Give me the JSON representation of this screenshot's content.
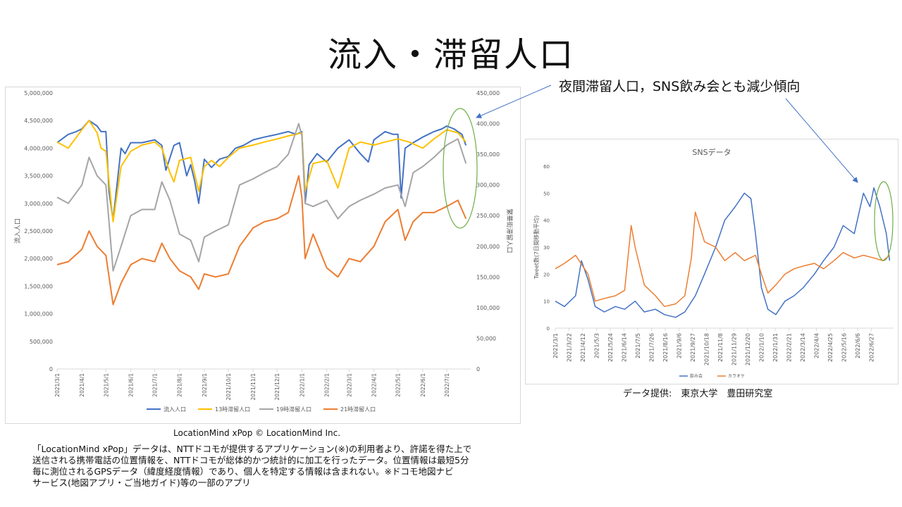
{
  "slide": {
    "title": "流入・滞留人口",
    "annotation": "夜間滞留人口，SNS飲み会とも減少傾向",
    "credit_main": "LocationMind xPop © LocationMind Inc.",
    "credit_sns": "データ提供:　東京大学　豊田研究室",
    "note_lines": [
      "「LocationMind xPop」データは、NTTドコモが提供するアプリケーション(※)の利用者より、許諾を得た上で",
      "送信される携帯電話の位置情報を、NTTドコモが総体的かつ統計的に加工を行ったデータ。位置情報は最短5分",
      "毎に測位されるGPSデータ（緯度経度情報）であり、個人を特定する情報は含まれない。※ドコモ地図ナビ",
      "サービス(地図アプリ・ご当地ガイド)等の一部のアプリ"
    ]
  },
  "colors": {
    "blue": "#4472c4",
    "yellow": "#ffc000",
    "gray": "#a5a5a5",
    "orange": "#ed7d31",
    "ellipse": "#70ad47",
    "arrow": "#4472c4"
  },
  "chart_data": [
    {
      "type": "line",
      "title": "",
      "ylabel": "流入人口",
      "y2label": "繁華街滞留人口",
      "ylim": [
        0,
        5000000
      ],
      "y2lim": [
        0,
        450000
      ],
      "yticks": [
        "0",
        "500,000",
        "1,000,000",
        "1,500,000",
        "2,000,000",
        "2,500,000",
        "3,000,000",
        "3,500,000",
        "4,000,000",
        "4,500,000",
        "5,000,000"
      ],
      "y2ticks": [
        "0",
        "50,000",
        "100,000",
        "150,000",
        "200,000",
        "250,000",
        "300,000",
        "350,000",
        "400,000",
        "450,000"
      ],
      "xticks": [
        "2021/3/1",
        "2021/4/1",
        "2021/5/1",
        "2021/6/1",
        "2021/7/1",
        "2021/8/1",
        "2021/9/1",
        "2021/10/1",
        "2021/11/1",
        "2021/12/1",
        "2022/1/1",
        "2022/2/1",
        "2022/3/1",
        "2022/4/1",
        "2022/5/1",
        "2022/6/1",
        "2022/7/1"
      ],
      "xstart": "2021/3/1",
      "xend": "2022/7/31",
      "grid": false,
      "legend_position": "bottom",
      "series": [
        {
          "name": "流入人口",
          "axis": "left",
          "x": [
            "2021/3/1",
            "2021/3/15",
            "2021/3/25",
            "2021/4/1",
            "2021/4/10",
            "2021/4/20",
            "2021/4/25",
            "2021/5/1",
            "2021/5/5",
            "2021/5/10",
            "2021/5/20",
            "2021/5/25",
            "2021/6/1",
            "2021/6/15",
            "2021/7/1",
            "2021/7/10",
            "2021/7/15",
            "2021/7/25",
            "2021/8/1",
            "2021/8/10",
            "2021/8/15",
            "2021/8/20",
            "2021/8/25",
            "2021/9/1",
            "2021/9/10",
            "2021/9/20",
            "2021/10/1",
            "2021/10/10",
            "2021/10/20",
            "2021/11/1",
            "2021/11/15",
            "2021/12/1",
            "2021/12/15",
            "2021/12/25",
            "2022/1/1",
            "2022/1/5",
            "2022/1/10",
            "2022/1/20",
            "2022/2/1",
            "2022/2/15",
            "2022/3/1",
            "2022/3/15",
            "2022/3/25",
            "2022/4/1",
            "2022/4/15",
            "2022/4/25",
            "2022/5/1",
            "2022/5/5",
            "2022/5/10",
            "2022/5/20",
            "2022/6/1",
            "2022/6/15",
            "2022/6/25",
            "2022/7/1",
            "2022/7/10",
            "2022/7/20",
            "2022/7/25"
          ],
          "values": [
            4100000,
            4250000,
            4300000,
            4350000,
            4500000,
            4400000,
            4300000,
            4300000,
            3200000,
            2700000,
            4000000,
            3900000,
            4100000,
            4100000,
            4150000,
            4050000,
            3600000,
            4050000,
            4100000,
            3500000,
            3700000,
            3400000,
            3000000,
            3800000,
            3650000,
            3800000,
            3850000,
            4000000,
            4050000,
            4150000,
            4200000,
            4250000,
            4300000,
            4250000,
            4300000,
            3000000,
            3700000,
            3900000,
            3750000,
            4000000,
            4150000,
            3900000,
            3750000,
            4150000,
            4300000,
            4250000,
            4250000,
            3100000,
            4000000,
            4100000,
            4200000,
            4300000,
            4350000,
            4400000,
            4350000,
            4250000,
            4050000
          ]
        },
        {
          "name": "13時滞留人口",
          "axis": "right",
          "x": [
            "2021/3/1",
            "2021/3/15",
            "2021/4/1",
            "2021/4/10",
            "2021/4/20",
            "2021/4/25",
            "2021/5/1",
            "2021/5/10",
            "2021/5/20",
            "2021/6/1",
            "2021/6/15",
            "2021/7/1",
            "2021/7/10",
            "2021/7/20",
            "2021/7/25",
            "2021/8/1",
            "2021/8/15",
            "2021/8/25",
            "2021/9/1",
            "2021/9/10",
            "2021/9/20",
            "2021/10/1",
            "2021/10/15",
            "2021/11/1",
            "2021/11/15",
            "2021/12/1",
            "2021/12/15",
            "2022/1/1",
            "2022/1/5",
            "2022/1/15",
            "2022/2/1",
            "2022/2/15",
            "2022/3/1",
            "2022/3/15",
            "2022/4/1",
            "2022/4/15",
            "2022/5/1",
            "2022/5/15",
            "2022/6/1",
            "2022/6/15",
            "2022/7/1",
            "2022/7/15",
            "2022/7/25"
          ],
          "values": [
            370000,
            360000,
            390000,
            405000,
            385000,
            360000,
            355000,
            240000,
            330000,
            355000,
            365000,
            370000,
            360000,
            320000,
            305000,
            340000,
            345000,
            290000,
            330000,
            340000,
            330000,
            345000,
            360000,
            365000,
            370000,
            375000,
            380000,
            385000,
            290000,
            335000,
            340000,
            295000,
            360000,
            370000,
            365000,
            370000,
            375000,
            370000,
            360000,
            375000,
            390000,
            385000,
            370000
          ]
        },
        {
          "name": "19時滞留人口",
          "axis": "right",
          "x": [
            "2021/3/1",
            "2021/3/15",
            "2021/4/1",
            "2021/4/10",
            "2021/4/20",
            "2021/5/1",
            "2021/5/10",
            "2021/5/20",
            "2021/6/1",
            "2021/6/15",
            "2021/7/1",
            "2021/7/10",
            "2021/7/20",
            "2021/8/1",
            "2021/8/15",
            "2021/8/25",
            "2021/9/1",
            "2021/9/15",
            "2021/10/1",
            "2021/10/15",
            "2021/11/1",
            "2021/11/15",
            "2021/12/1",
            "2021/12/15",
            "2021/12/28",
            "2022/1/1",
            "2022/1/5",
            "2022/1/15",
            "2022/2/1",
            "2022/2/15",
            "2022/3/1",
            "2022/3/15",
            "2022/4/1",
            "2022/4/15",
            "2022/5/1",
            "2022/5/10",
            "2022/5/20",
            "2022/6/1",
            "2022/6/15",
            "2022/7/1",
            "2022/7/15",
            "2022/7/25"
          ],
          "values": [
            280000,
            270000,
            300000,
            345000,
            315000,
            300000,
            160000,
            200000,
            250000,
            260000,
            260000,
            305000,
            275000,
            220000,
            210000,
            175000,
            215000,
            225000,
            235000,
            300000,
            310000,
            320000,
            330000,
            350000,
            400000,
            380000,
            270000,
            265000,
            275000,
            245000,
            265000,
            275000,
            285000,
            295000,
            300000,
            265000,
            320000,
            330000,
            345000,
            365000,
            375000,
            335000
          ]
        },
        {
          "name": "21時滞留人口",
          "axis": "right",
          "x": [
            "2021/3/1",
            "2021/3/15",
            "2021/4/1",
            "2021/4/10",
            "2021/4/20",
            "2021/5/1",
            "2021/5/10",
            "2021/5/20",
            "2021/6/1",
            "2021/6/15",
            "2021/7/1",
            "2021/7/10",
            "2021/7/20",
            "2021/8/1",
            "2021/8/15",
            "2021/8/25",
            "2021/9/1",
            "2021/9/15",
            "2021/10/1",
            "2021/10/15",
            "2021/11/1",
            "2021/11/15",
            "2021/12/1",
            "2021/12/15",
            "2021/12/28",
            "2022/1/1",
            "2022/1/5",
            "2022/1/15",
            "2022/2/1",
            "2022/2/15",
            "2022/3/1",
            "2022/3/15",
            "2022/4/1",
            "2022/4/15",
            "2022/5/1",
            "2022/5/10",
            "2022/5/20",
            "2022/6/1",
            "2022/6/15",
            "2022/7/1",
            "2022/7/15",
            "2022/7/25"
          ],
          "values": [
            170000,
            175000,
            195000,
            225000,
            200000,
            185000,
            105000,
            140000,
            170000,
            180000,
            175000,
            205000,
            180000,
            160000,
            150000,
            130000,
            155000,
            150000,
            155000,
            200000,
            230000,
            240000,
            245000,
            255000,
            315000,
            280000,
            180000,
            220000,
            165000,
            150000,
            180000,
            175000,
            200000,
            240000,
            260000,
            210000,
            240000,
            255000,
            255000,
            265000,
            275000,
            245000
          ]
        }
      ]
    },
    {
      "type": "line",
      "title": "SNSデータ",
      "ylabel": "Tweet数(7日間移動平均)",
      "ylim": [
        0,
        60
      ],
      "yticks": [
        "0",
        "10",
        "20",
        "30",
        "40",
        "50",
        "60"
      ],
      "xticks": [
        "2021/3/1",
        "2021/3/22",
        "2021/4/12",
        "2021/5/3",
        "2021/5/24",
        "2021/6/14",
        "2021/7/5",
        "2021/7/26",
        "2021/8/16",
        "2021/9/6",
        "2021/9/27",
        "2021/10/18",
        "2021/11/8",
        "2021/11/29",
        "2021/12/20",
        "2022/1/10",
        "2022/1/31",
        "2022/2/21",
        "2022/3/14",
        "2022/4/4",
        "2022/4/25",
        "2022/5/16",
        "2022/6/6",
        "2022/6/27"
      ],
      "xstart": "2021/3/1",
      "xend": "2022/7/31",
      "grid": false,
      "legend_position": "bottom",
      "series": [
        {
          "name": "飲み会",
          "x": [
            "2021/3/1",
            "2021/3/15",
            "2021/4/1",
            "2021/4/10",
            "2021/4/20",
            "2021/5/1",
            "2021/5/15",
            "2021/6/1",
            "2021/6/15",
            "2021/7/1",
            "2021/7/15",
            "2021/8/1",
            "2021/8/15",
            "2021/9/1",
            "2021/9/15",
            "2021/10/1",
            "2021/10/15",
            "2021/11/1",
            "2021/11/15",
            "2021/12/1",
            "2021/12/15",
            "2021/12/25",
            "2022/1/1",
            "2022/1/10",
            "2022/1/20",
            "2022/2/1",
            "2022/2/15",
            "2022/3/1",
            "2022/3/15",
            "2022/4/1",
            "2022/4/15",
            "2022/5/1",
            "2022/5/15",
            "2022/6/1",
            "2022/6/15",
            "2022/6/25",
            "2022/7/1",
            "2022/7/10",
            "2022/7/20",
            "2022/7/25"
          ],
          "values": [
            10,
            8,
            12,
            25,
            18,
            8,
            6,
            8,
            7,
            10,
            6,
            7,
            5,
            4,
            6,
            12,
            20,
            30,
            40,
            45,
            50,
            48,
            35,
            15,
            7,
            5,
            10,
            12,
            15,
            20,
            25,
            30,
            38,
            35,
            50,
            45,
            52,
            45,
            35,
            25
          ]
        },
        {
          "name": "カラオケ",
          "x": [
            "2021/3/1",
            "2021/3/15",
            "2021/4/1",
            "2021/4/20",
            "2021/5/1",
            "2021/5/15",
            "2021/6/1",
            "2021/6/15",
            "2021/6/25",
            "2021/7/1",
            "2021/7/15",
            "2021/8/1",
            "2021/8/15",
            "2021/9/1",
            "2021/9/15",
            "2021/9/25",
            "2021/10/1",
            "2021/10/15",
            "2021/11/1",
            "2021/11/15",
            "2021/12/1",
            "2021/12/15",
            "2022/1/1",
            "2022/1/10",
            "2022/1/20",
            "2022/2/1",
            "2022/2/15",
            "2022/3/1",
            "2022/3/15",
            "2022/4/1",
            "2022/4/15",
            "2022/5/1",
            "2022/5/15",
            "2022/6/1",
            "2022/6/15",
            "2022/7/1",
            "2022/7/15",
            "2022/7/25"
          ],
          "values": [
            22,
            24,
            27,
            20,
            10,
            11,
            12,
            14,
            38,
            30,
            16,
            12,
            8,
            9,
            12,
            26,
            43,
            32,
            30,
            25,
            28,
            25,
            27,
            20,
            13,
            16,
            20,
            22,
            23,
            24,
            22,
            25,
            28,
            26,
            27,
            26,
            25,
            27
          ]
        }
      ]
    }
  ]
}
